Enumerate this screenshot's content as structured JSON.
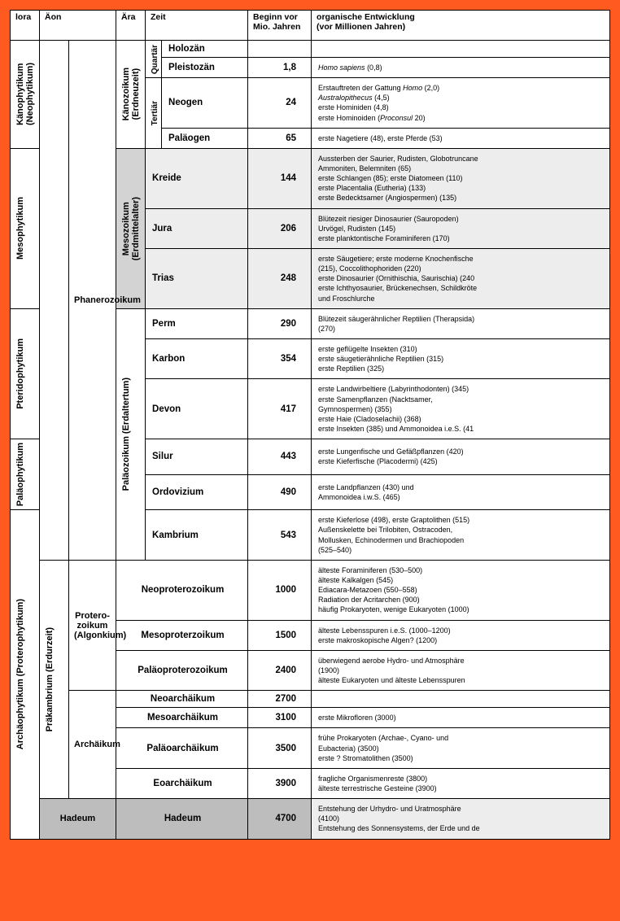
{
  "columns": {
    "flora": "lora",
    "aon": "Äon",
    "ara": "Ära",
    "zeit": "Zeit",
    "begin": "Beginn vor\nMio. Jahren",
    "entw": "organische Entwicklung\n(vor Millionen Jahren)"
  },
  "flora": {
    "kano": "Känophytikum\n(Neophytikum)",
    "meso": "Mesophytikum",
    "pterido": "Pteridophytikum",
    "palao": "Paläophytikum",
    "archao": "Archäophytikum (Proterophytikum)"
  },
  "aon1": {
    "prak": "Präkambrium (Erdurzeit)"
  },
  "aon2": {
    "phan": "Phanerozoikum",
    "protero": "Protero-\nzoikum\n(Algonkium)",
    "archai": "Archäikum",
    "hadeum": "Hadeum"
  },
  "ara": {
    "kano": "Känozoikum\n(Erdneuzeit)",
    "meso": "Mesozoikum\n(Erdmittelalter)",
    "palao": "Paläozoikum (Erdaltertum)"
  },
  "sub": {
    "quartar": "Quartär",
    "tertiar": "Tertiär"
  },
  "rows": [
    {
      "zeit": "Holozän",
      "begin": "",
      "desc": ""
    },
    {
      "zeit": "Pleistozän",
      "begin": "1,8",
      "desc": "<span class='italic'>Homo sapiens</span> (0,8)"
    },
    {
      "zeit": "Neogen",
      "begin": "24",
      "desc": "Erstauftreten der Gattung <span class='italic'>Homo</span> (2,0)<br><span class='italic'>Australopithecus</span> (4,5)<br>erste Hominiden (4,8)<br>erste Hominoiden (<span class='italic'>Proconsul</span> 20)"
    },
    {
      "zeit": "Paläogen",
      "begin": "65",
      "desc": "erste Nagetiere (48), erste Pferde (53)"
    },
    {
      "zeit": "Kreide",
      "begin": "144",
      "desc": "Aussterben der Saurier, Rudisten, Globotruncane<br>Ammoniten, Belemniten (65)<br>erste Schlangen (85); erste Diatomeen (110)<br>erste Placentalia (Eutheria) (133)<br>erste Bedecktsamer (Angiospermen) (135)"
    },
    {
      "zeit": "Jura",
      "begin": "206",
      "desc": "Blütezeit riesiger Dinosaurier (Sauropoden)<br>Urvögel, Rudisten (145)<br>erste planktontische Foraminiferen (170)"
    },
    {
      "zeit": "Trias",
      "begin": "248",
      "desc": "erste Säugetiere; erste moderne Knochenfische<br>(215), Coccolithophoriden (220)<br>erste Dinosaurier (Ornithischia, Saurischia) (240<br>erste Ichthyosaurier, Brückenechsen, Schildkröte<br>und Froschlurche"
    },
    {
      "zeit": "Perm",
      "begin": "290",
      "desc": "Blütezeit säugerähnlicher Reptilien (Therapsida)<br>(270)"
    },
    {
      "zeit": "Karbon",
      "begin": "354",
      "desc": "erste geflügelte Insekten (310)<br>erste säugetierähnliche Reptilien (315)<br>erste Reptilien (325)"
    },
    {
      "zeit": "Devon",
      "begin": "417",
      "desc": "erste Landwirbeltiere (Labyrinthodonten) (345)<br>erste Samenpflanzen (Nacktsamer,<br>Gymnospermen) (355)<br>erste Haie (Cladoselachii) (368)<br>erste Insekten (385) und Ammonoidea i.e.S. (41"
    },
    {
      "zeit": "Silur",
      "begin": "443",
      "desc": "erste Lungenfische und Gefäßpflanzen (420)<br>erste Kieferfische (Placodermi) (425)"
    },
    {
      "zeit": "Ordovizium",
      "begin": "490",
      "desc": "erste Landpflanzen (430) und<br>Ammonoidea i.w.S. (465)"
    },
    {
      "zeit": "Kambrium",
      "begin": "543",
      "desc": "erste Kieferlose (498), erste Graptolithen (515)<br>Außenskelette bei Trilobiten, Ostracoden,<br>Mollusken, Echinodermen und Brachiopoden<br>(525–540)"
    },
    {
      "zeit": "Neoproterozoikum",
      "begin": "1000",
      "desc": "älteste Foraminiferen (530–500)<br>älteste Kalkalgen (545)<br>Ediacara-Metazoen (550–558)<br>Radiation der Acritarchen (900)<br>häufig Prokaryoten, wenige Eukaryoten (1000)"
    },
    {
      "zeit": "Mesoproterzoikum",
      "begin": "1500",
      "desc": "älteste Lebensspuren i.e.S. (1000–1200)<br>erste makroskopische Algen? (1200)"
    },
    {
      "zeit": "Paläoproterozoikum",
      "begin": "2400",
      "desc": "überwiegend aerobe Hydro- und Atmosphäre<br>(1900)<br>älteste Eukaryoten und älteste Lebensspuren"
    },
    {
      "zeit": "Neoarchäikum",
      "begin": "2700",
      "desc": ""
    },
    {
      "zeit": "Mesoarchäikum",
      "begin": "3100",
      "desc": "erste Mikrofloren (3000)"
    },
    {
      "zeit": "Paläoarchäikum",
      "begin": "3500",
      "desc": "frühe Prokaryoten (Archae-, Cyano- und<br>Eubacteria) (3500)<br>erste ? Stromatolithen (3500)"
    },
    {
      "zeit": "Eoarchäikum",
      "begin": "3900",
      "desc": "fragliche Organismenreste (3800)<br>älteste terrestrische Gesteine (3900)"
    },
    {
      "zeit": "Hadeum",
      "begin": "4700",
      "desc": "Entstehung der Urhydro- und Uratmosphäre<br>(4100)<br>Entstehung des Sonnensystems, der Erde und de"
    }
  ],
  "colors": {
    "page_bg": "#ff5a1f",
    "sheet_bg": "#ffffff",
    "border": "#000000",
    "shade_light": "#ededed",
    "shade_mid": "#d3d3d3",
    "shade_dark": "#bdbdbd"
  }
}
